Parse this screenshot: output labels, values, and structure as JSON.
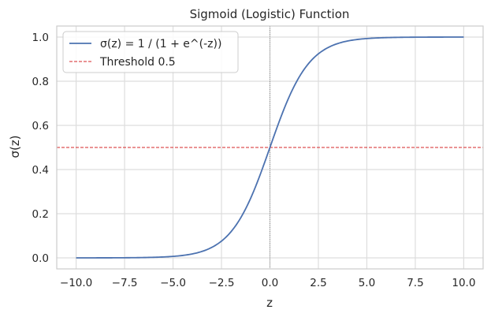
{
  "chart_data": {
    "type": "line",
    "title": "Sigmoid (Logistic) Function",
    "xlabel": "z",
    "ylabel": "σ(z)",
    "xlim": [
      -11,
      11
    ],
    "ylim": [
      -0.05,
      1.05
    ],
    "xticks": [
      -10,
      -7.5,
      -5,
      -2.5,
      0,
      2.5,
      5,
      7.5,
      10
    ],
    "xtick_labels": [
      "−10.0",
      "−7.5",
      "−5.0",
      "−2.5",
      "0.0",
      "2.5",
      "5.0",
      "7.5",
      "10.0"
    ],
    "yticks": [
      0,
      0.2,
      0.4,
      0.6,
      0.8,
      1.0
    ],
    "ytick_labels": [
      "0.0",
      "0.2",
      "0.4",
      "0.6",
      "0.8",
      "1.0"
    ],
    "grid": true,
    "legend_position": "top-left",
    "series": [
      {
        "name": "σ(z) = 1 / (1 + e^(-z))",
        "color": "#4c72b0",
        "style": "solid",
        "x": [
          -10,
          -9,
          -8,
          -7,
          -6,
          -5,
          -4.5,
          -4,
          -3.5,
          -3,
          -2.5,
          -2,
          -1.5,
          -1,
          -0.5,
          0,
          0.5,
          1,
          1.5,
          2,
          2.5,
          3,
          3.5,
          4,
          4.5,
          5,
          6,
          7,
          8,
          9,
          10
        ],
        "y": [
          4.54e-05,
          0.000123,
          0.000335,
          0.000911,
          0.00247,
          0.00669,
          0.011,
          0.018,
          0.0293,
          0.0474,
          0.0759,
          0.1192,
          0.1824,
          0.2689,
          0.3775,
          0.5,
          0.6225,
          0.7311,
          0.8176,
          0.8808,
          0.9241,
          0.9526,
          0.9707,
          0.982,
          0.989,
          0.9933,
          0.9975,
          0.9991,
          0.99966,
          0.99988,
          0.99995
        ]
      },
      {
        "name": "Threshold 0.5",
        "color": "#d62728",
        "style": "dashed",
        "hline": 0.5
      }
    ],
    "vline": {
      "x": 0,
      "color": "#808080",
      "style": "dotted"
    }
  }
}
